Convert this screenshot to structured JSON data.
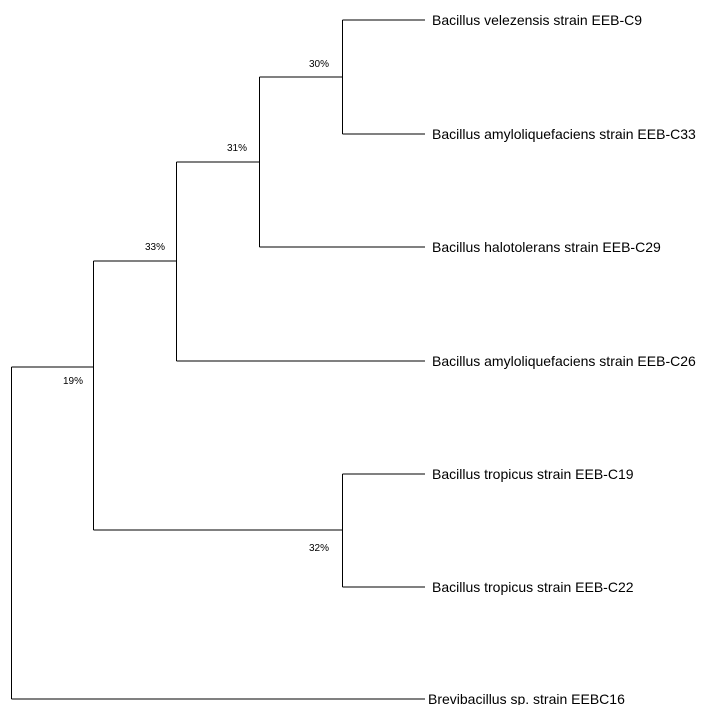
{
  "tree": {
    "leaves": [
      {
        "id": "c9",
        "label": "Bacillus velezensis strain EEB-C9"
      },
      {
        "id": "c33",
        "label": "Bacillus amyloliquefaciens strain EEB-C33"
      },
      {
        "id": "c29",
        "label": "Bacillus halotolerans strain EEB-C29"
      },
      {
        "id": "c26",
        "label": "Bacillus amyloliquefaciens strain EEB-C26"
      },
      {
        "id": "c19",
        "label": "Bacillus tropicus strain EEB-C19"
      },
      {
        "id": "c22",
        "label": "Bacillus tropicus strain EEB-C22"
      },
      {
        "id": "c16",
        "label": "Brevibacillus sp. strain EEBC16"
      }
    ],
    "nodes": [
      {
        "id": "n-c9-c33",
        "support": "30%"
      },
      {
        "id": "n-c29",
        "support": "31%"
      },
      {
        "id": "n-c26",
        "support": "33%"
      },
      {
        "id": "n-tropicus",
        "support": "32%"
      },
      {
        "id": "n-bacillus",
        "support": "19%"
      },
      {
        "id": "n-root",
        "support": ""
      }
    ]
  }
}
